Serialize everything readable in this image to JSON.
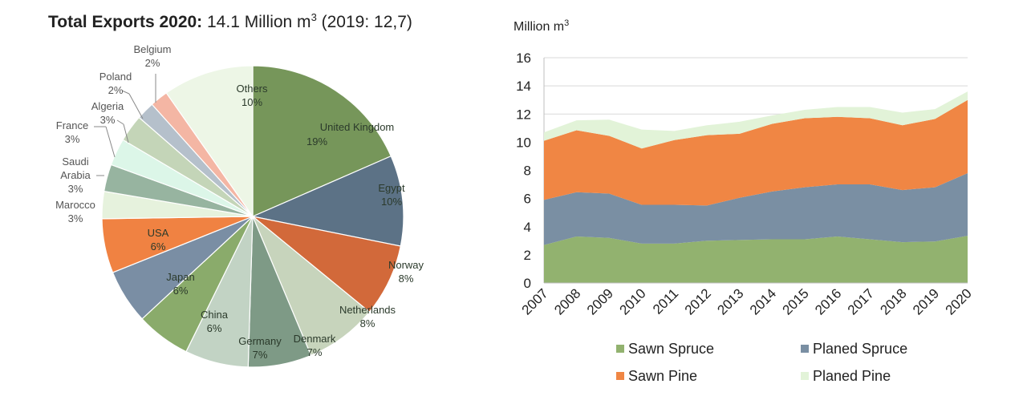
{
  "chart_data": [
    {
      "type": "pie",
      "title": {
        "bold": "Total Exports 2020:",
        "value": " 14.1 Million m",
        "sup": "3",
        "suffix": " (2019: 12,7)"
      },
      "slices": [
        {
          "label": "United Kingdom",
          "pct": "19%",
          "value": 19,
          "color": "#76965a"
        },
        {
          "label": "Egypt",
          "pct": "10%",
          "value": 10,
          "color": "#5c7286"
        },
        {
          "label": "Norway",
          "pct": "8%",
          "value": 8,
          "color": "#d2693a"
        },
        {
          "label": "Netherlands",
          "pct": "8%",
          "value": 8,
          "color": "#c7d4bc"
        },
        {
          "label": "Denmark",
          "pct": "7%",
          "value": 7,
          "color": "#7e9a86"
        },
        {
          "label": "Germany",
          "pct": "7%",
          "value": 7,
          "color": "#c2d3c4"
        },
        {
          "label": "China",
          "pct": "6%",
          "value": 6,
          "color": "#8aab6b"
        },
        {
          "label": "Japan",
          "pct": "6%",
          "value": 6,
          "color": "#7a8ea4"
        },
        {
          "label": "USA",
          "pct": "6%",
          "value": 6,
          "color": "#f08242"
        },
        {
          "label": "Marocco",
          "pct": "3%",
          "value": 3,
          "color": "#e6f2dd"
        },
        {
          "label": "Saudi Arabia",
          "pct": "3%",
          "value": 3,
          "color": "#97b4a0"
        },
        {
          "label": "France",
          "pct": "3%",
          "value": 3,
          "color": "#dcf6e8"
        },
        {
          "label": "Algeria",
          "pct": "3%",
          "value": 3,
          "color": "#c4d5b8"
        },
        {
          "label": "Poland",
          "pct": "2%",
          "value": 2,
          "color": "#b5c0cb"
        },
        {
          "label": "Belgium",
          "pct": "2%",
          "value": 2,
          "color": "#f4b6a4"
        },
        {
          "label": "Others",
          "pct": "10%",
          "value": 10,
          "color": "#edf6e6"
        }
      ]
    },
    {
      "type": "area",
      "ylabel": "Million m",
      "ylabel_sup": "3",
      "ylim": [
        0,
        16
      ],
      "yticks": [
        0,
        2,
        4,
        6,
        8,
        10,
        12,
        14,
        16
      ],
      "x": [
        "2007",
        "2008",
        "2009",
        "2010",
        "2011",
        "2012",
        "2013",
        "2014",
        "2015",
        "2016",
        "2017",
        "2018",
        "2019",
        "2020"
      ],
      "stacked": true,
      "legend_position": "bottom",
      "series": [
        {
          "name": "Sawn Spruce",
          "color": "#92b26f",
          "values": [
            2.7,
            3.3,
            3.2,
            2.8,
            2.8,
            3.0,
            3.05,
            3.1,
            3.1,
            3.3,
            3.1,
            2.9,
            2.95,
            3.35
          ]
        },
        {
          "name": "Planed Spruce",
          "color": "#7a8fa3",
          "values": [
            3.2,
            3.15,
            3.15,
            2.75,
            2.75,
            2.5,
            3.0,
            3.4,
            3.7,
            3.7,
            3.9,
            3.7,
            3.85,
            4.45
          ]
        },
        {
          "name": "Sawn Pine",
          "color": "#f08644",
          "values": [
            4.2,
            4.4,
            4.1,
            4.0,
            4.6,
            5.0,
            4.55,
            4.8,
            4.9,
            4.8,
            4.7,
            4.6,
            4.85,
            5.2
          ]
        },
        {
          "name": "Planed Pine",
          "color": "#e2f3d8",
          "values": [
            0.6,
            0.7,
            1.15,
            1.35,
            0.65,
            0.7,
            0.85,
            0.6,
            0.6,
            0.7,
            0.8,
            0.9,
            0.7,
            0.6
          ]
        }
      ]
    }
  ]
}
